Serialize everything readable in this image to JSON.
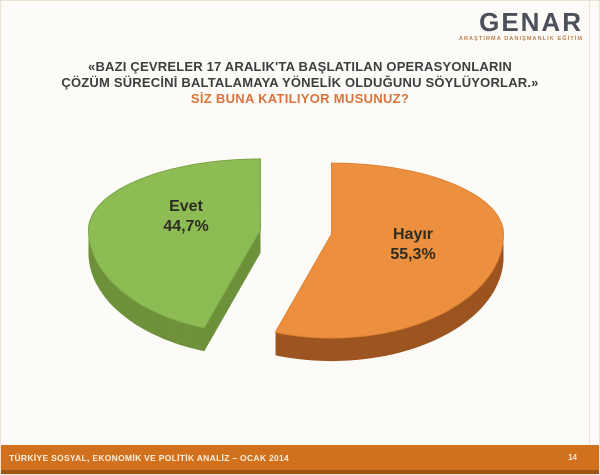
{
  "logo": {
    "name": "GENAR",
    "tagline": "ARAŞTIRMA DANIŞMANLIK EĞİTİM"
  },
  "header": {
    "quote_line1": "«BAZI ÇEVRELER 17 ARALIK'TA BAŞLATILAN OPERASYONLARIN",
    "quote_line2": "ÇÖZÜM SÜRECİNİ BALTALAMAYA YÖNELİK OLDUĞUNU SÖYLÜYORLAR.»",
    "question": "SİZ BUNA KATILIYOR MUSUNUZ?",
    "question_color": "#d9743a"
  },
  "chart_data": {
    "type": "pie",
    "style": "3d-exploded",
    "title": "SİZ BUNA KATILIYOR MUSUNUZ?",
    "labels": [
      "Evet",
      "Hayır"
    ],
    "values": [
      44.7,
      55.3
    ],
    "value_labels": [
      "44,7%",
      "55,3%"
    ],
    "slice_colors": [
      "#8dbc55",
      "#ec8f3f"
    ],
    "slice_side_colors": [
      "#6e913b",
      "#9c5420"
    ],
    "slice_edge_colors": [
      "#7aa544",
      "#dd8233"
    ],
    "label_color": "#2d2d22",
    "start_angle_deg": 0,
    "direction": "clockwise",
    "first_drawn_slice": "Hayır",
    "legend": "none"
  },
  "footer": {
    "text": "TÜRKİYE SOSYAL, EKONOMİK VE POLİTİK ANALİZ – OCAK 2014",
    "page": "14",
    "bar_color": "#d2711d"
  }
}
